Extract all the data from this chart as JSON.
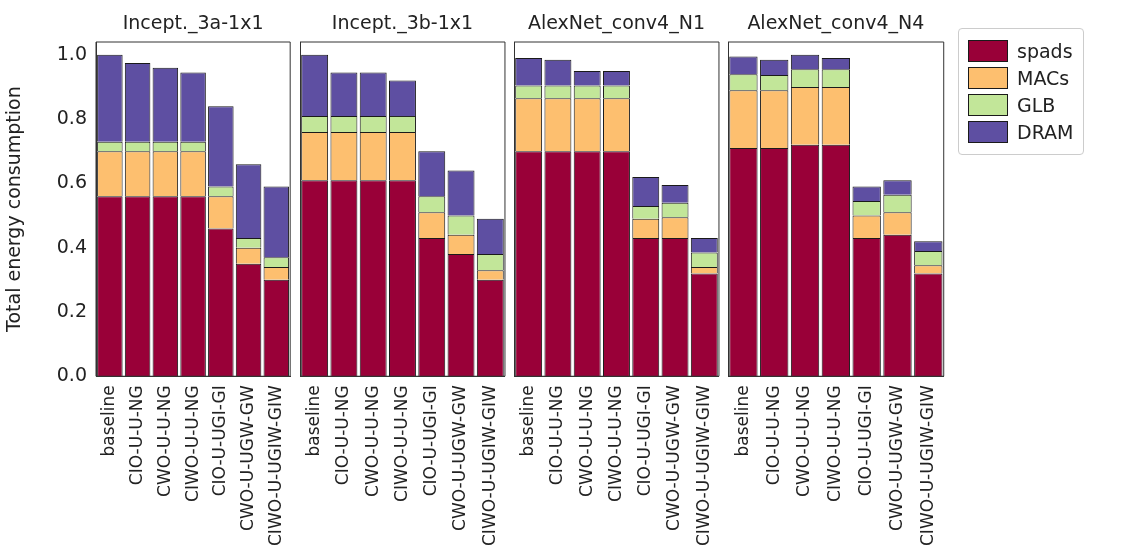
{
  "chart_data": [
    {
      "type": "bar",
      "stacked": true,
      "title": "Incept._3a-1x1",
      "ylabel": "Total energy consumption",
      "categories": [
        "baseline",
        "CIO-U-U-NG",
        "CWO-U-U-NG",
        "CIWO-U-U-NG",
        "CIO-U-UGI-GI",
        "CWO-U-UGW-GW",
        "CIWO-U-UGIW-GIW"
      ],
      "ylim": [
        0,
        1.04
      ],
      "yticks": [
        {
          "value": 0,
          "label": "0.0"
        },
        {
          "value": 0.2,
          "label": "0.2"
        },
        {
          "value": 0.4,
          "label": "0.4"
        },
        {
          "value": 0.6,
          "label": "0.6"
        },
        {
          "value": 0.8,
          "label": "0.8"
        },
        {
          "value": 1,
          "label": "1.0"
        }
      ],
      "grid": false,
      "legend": false,
      "series": [
        {
          "color": "#990038",
          "values": [
            0.56,
            0.56,
            0.56,
            0.56,
            0.46,
            0.35,
            0.3
          ]
        },
        {
          "color": "#fdbf6f",
          "values": [
            0.14,
            0.14,
            0.14,
            0.14,
            0.1,
            0.05,
            0.04
          ]
        },
        {
          "color": "#c2e699",
          "values": [
            0.03,
            0.03,
            0.03,
            0.03,
            0.03,
            0.03,
            0.03
          ]
        },
        {
          "color": "#5e4fa2",
          "values": [
            0.27,
            0.245,
            0.23,
            0.215,
            0.25,
            0.23,
            0.22
          ]
        }
      ]
    },
    {
      "type": "bar",
      "stacked": true,
      "title": "Incept._3b-1x1",
      "categories": [
        "baseline",
        "CIO-U-U-NG",
        "CWO-U-U-NG",
        "CIWO-U-U-NG",
        "CIO-U-UGI-GI",
        "CWO-U-UGW-GW",
        "CIWO-U-UGIW-GIW"
      ],
      "ylim": [
        0,
        1.04
      ],
      "tick_labels": "x",
      "grid": false,
      "legend": false,
      "series": [
        {
          "color": "#990038",
          "values": [
            0.61,
            0.61,
            0.61,
            0.61,
            0.43,
            0.38,
            0.3
          ]
        },
        {
          "color": "#fdbf6f",
          "values": [
            0.15,
            0.15,
            0.15,
            0.15,
            0.08,
            0.06,
            0.03
          ]
        },
        {
          "color": "#c2e699",
          "values": [
            0.05,
            0.05,
            0.05,
            0.05,
            0.05,
            0.06,
            0.05
          ]
        },
        {
          "color": "#5e4fa2",
          "values": [
            0.19,
            0.135,
            0.135,
            0.11,
            0.14,
            0.14,
            0.11
          ]
        }
      ]
    },
    {
      "type": "bar",
      "stacked": true,
      "title": "AlexNet_conv4_N1",
      "categories": [
        "baseline",
        "CIO-U-U-NG",
        "CWO-U-U-NG",
        "CIWO-U-U-NG",
        "CIO-U-UGI-GI",
        "CWO-U-UGW-GW",
        "CIWO-U-UGIW-GIW"
      ],
      "ylim": [
        0,
        1.04
      ],
      "tick_labels": "x",
      "grid": false,
      "legend": false,
      "series": [
        {
          "color": "#990038",
          "values": [
            0.7,
            0.7,
            0.7,
            0.7,
            0.43,
            0.43,
            0.32
          ]
        },
        {
          "color": "#fdbf6f",
          "values": [
            0.165,
            0.165,
            0.165,
            0.165,
            0.06,
            0.065,
            0.02
          ]
        },
        {
          "color": "#c2e699",
          "values": [
            0.04,
            0.04,
            0.04,
            0.04,
            0.04,
            0.045,
            0.045
          ]
        },
        {
          "color": "#5e4fa2",
          "values": [
            0.085,
            0.08,
            0.045,
            0.045,
            0.09,
            0.055,
            0.045
          ]
        }
      ]
    },
    {
      "type": "bar",
      "stacked": true,
      "title": "AlexNet_conv4_N4",
      "categories": [
        "baseline",
        "CIO-U-U-NG",
        "CWO-U-U-NG",
        "CIWO-U-U-NG",
        "CIO-U-UGI-GI",
        "CWO-U-UGW-GW",
        "CIWO-U-UGIW-GIW"
      ],
      "ylim": [
        0,
        1.04
      ],
      "tick_labels": "x",
      "grid": false,
      "legend": "top right",
      "series": [
        {
          "name": "spads",
          "color": "#990038",
          "values": [
            0.71,
            0.71,
            0.72,
            0.72,
            0.43,
            0.44,
            0.32
          ]
        },
        {
          "name": "MACs",
          "color": "#fdbf6f",
          "values": [
            0.18,
            0.18,
            0.18,
            0.18,
            0.07,
            0.07,
            0.025
          ]
        },
        {
          "name": "GLB",
          "color": "#c2e699",
          "values": [
            0.05,
            0.047,
            0.055,
            0.055,
            0.045,
            0.055,
            0.045
          ]
        },
        {
          "name": "DRAM",
          "color": "#5e4fa2",
          "values": [
            0.055,
            0.048,
            0.045,
            0.035,
            0.045,
            0.045,
            0.03
          ]
        }
      ]
    }
  ]
}
